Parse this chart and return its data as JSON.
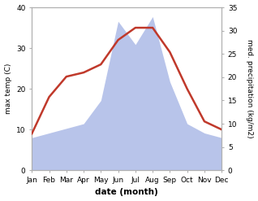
{
  "months": [
    "Jan",
    "Feb",
    "Mar",
    "Apr",
    "May",
    "Jun",
    "Jul",
    "Aug",
    "Sep",
    "Oct",
    "Nov",
    "Dec"
  ],
  "temperature": [
    9,
    18,
    23,
    24,
    26,
    32,
    35,
    35,
    29,
    20,
    12,
    10
  ],
  "precipitation": [
    7,
    8,
    9,
    10,
    15,
    32,
    27,
    33,
    19,
    10,
    8,
    7
  ],
  "temp_color": "#c0392b",
  "precip_color": "#b8c4ea",
  "temp_ylim": [
    0,
    40
  ],
  "precip_ylim": [
    0,
    35
  ],
  "temp_yticks": [
    0,
    10,
    20,
    30,
    40
  ],
  "precip_yticks": [
    0,
    5,
    10,
    15,
    20,
    25,
    30,
    35
  ],
  "ylabel_left": "max temp (C)",
  "ylabel_right": "med. precipitation (kg/m2)",
  "xlabel": "date (month)",
  "figsize": [
    3.18,
    2.47
  ],
  "dpi": 100,
  "spine_color": "#b0b0b0",
  "bg_color": "#ffffff"
}
